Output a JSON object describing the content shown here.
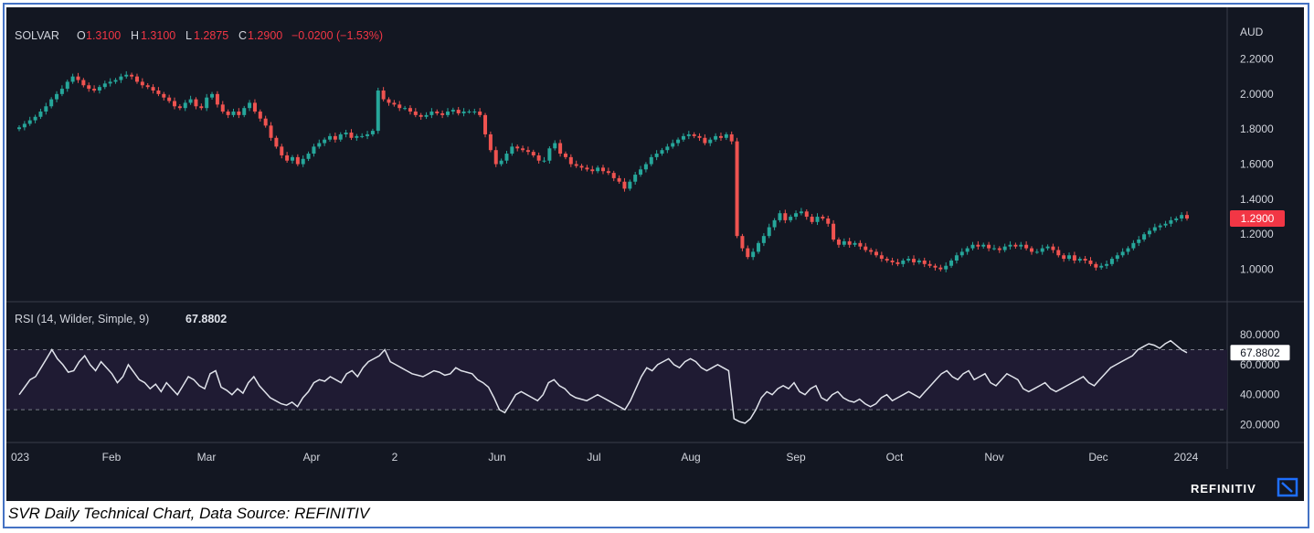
{
  "chart_data": {
    "type": "candlestick",
    "symbol": "SOLVAR",
    "ohlc_header": {
      "o_label": "O",
      "o_value": "1.3100",
      "h_label": "H",
      "h_value": "1.3100",
      "l_label": "L",
      "l_value": "1.2875",
      "c_label": "C",
      "c_value": "1.2900",
      "change": "−0.0200 (−1.53%)"
    },
    "currency": "AUD",
    "last_price_label": "1.2900",
    "price_axis": {
      "ylim": [
        0.93,
        2.26
      ],
      "ticks": [
        "2.2000",
        "2.0000",
        "1.8000",
        "1.6000",
        "1.4000",
        "1.2000",
        "1.0000"
      ],
      "tick_values": [
        2.2,
        2.0,
        1.8,
        1.6,
        1.4,
        1.2,
        1.0
      ]
    },
    "x_ticks": [
      "023",
      "Feb",
      "Mar",
      "Apr",
      "2",
      "Jun",
      "Jul",
      "Aug",
      "Sep",
      "Oct",
      "Nov",
      "Dec",
      "2024"
    ],
    "price_series": [
      1.81,
      1.83,
      1.85,
      1.87,
      1.9,
      1.93,
      1.97,
      2.0,
      2.03,
      2.07,
      2.1,
      2.08,
      2.05,
      2.03,
      2.02,
      2.04,
      2.06,
      2.07,
      2.08,
      2.1,
      2.11,
      2.1,
      2.07,
      2.05,
      2.04,
      2.02,
      2.0,
      1.98,
      1.96,
      1.93,
      1.92,
      1.95,
      1.97,
      1.93,
      1.92,
      1.98,
      2.0,
      1.94,
      1.9,
      1.88,
      1.9,
      1.88,
      1.92,
      1.95,
      1.9,
      1.86,
      1.82,
      1.75,
      1.7,
      1.65,
      1.62,
      1.64,
      1.6,
      1.63,
      1.66,
      1.7,
      1.72,
      1.74,
      1.76,
      1.74,
      1.77,
      1.78,
      1.75,
      1.76,
      1.76,
      1.77,
      1.79,
      2.02,
      1.97,
      1.95,
      1.94,
      1.92,
      1.92,
      1.9,
      1.88,
      1.87,
      1.88,
      1.9,
      1.89,
      1.88,
      1.9,
      1.91,
      1.89,
      1.9,
      1.9,
      1.9,
      1.88,
      1.77,
      1.68,
      1.6,
      1.62,
      1.66,
      1.7,
      1.69,
      1.68,
      1.67,
      1.65,
      1.62,
      1.62,
      1.69,
      1.72,
      1.66,
      1.64,
      1.6,
      1.59,
      1.58,
      1.57,
      1.56,
      1.58,
      1.56,
      1.55,
      1.52,
      1.5,
      1.46,
      1.5,
      1.54,
      1.57,
      1.6,
      1.64,
      1.66,
      1.68,
      1.7,
      1.72,
      1.74,
      1.76,
      1.77,
      1.76,
      1.75,
      1.72,
      1.74,
      1.76,
      1.75,
      1.77,
      1.73,
      1.19,
      1.12,
      1.07,
      1.1,
      1.15,
      1.19,
      1.24,
      1.28,
      1.32,
      1.28,
      1.3,
      1.32,
      1.33,
      1.3,
      1.27,
      1.3,
      1.29,
      1.26,
      1.17,
      1.14,
      1.16,
      1.14,
      1.15,
      1.13,
      1.11,
      1.1,
      1.08,
      1.06,
      1.05,
      1.04,
      1.03,
      1.05,
      1.06,
      1.04,
      1.05,
      1.03,
      1.02,
      1.01,
      1.0,
      1.02,
      1.05,
      1.08,
      1.1,
      1.12,
      1.14,
      1.13,
      1.14,
      1.12,
      1.12,
      1.11,
      1.13,
      1.14,
      1.13,
      1.14,
      1.12,
      1.1,
      1.1,
      1.12,
      1.13,
      1.11,
      1.08,
      1.06,
      1.08,
      1.05,
      1.06,
      1.05,
      1.03,
      1.01,
      1.02,
      1.03,
      1.06,
      1.08,
      1.1,
      1.12,
      1.15,
      1.17,
      1.2,
      1.22,
      1.24,
      1.25,
      1.26,
      1.28,
      1.29,
      1.31,
      1.29
    ],
    "rsi_label": "RSI (14, Wilder, Simple, 9)",
    "rsi_value": "67.8802",
    "rsi_axis": {
      "ylim": [
        13,
        88
      ],
      "ticks": [
        "80.0000",
        "60.0000",
        "40.0000",
        "20.0000"
      ],
      "tick_values": [
        80,
        60,
        40,
        20
      ],
      "band": [
        30,
        70
      ]
    },
    "rsi_series": [
      40,
      45,
      50,
      52,
      58,
      64,
      70,
      64,
      60,
      55,
      56,
      62,
      66,
      60,
      56,
      62,
      58,
      54,
      48,
      52,
      60,
      55,
      50,
      48,
      44,
      47,
      42,
      48,
      44,
      40,
      46,
      52,
      50,
      46,
      44,
      54,
      56,
      45,
      43,
      40,
      44,
      41,
      48,
      52,
      46,
      42,
      38,
      36,
      34,
      33,
      35,
      32,
      38,
      42,
      48,
      50,
      49,
      52,
      50,
      48,
      54,
      56,
      52,
      58,
      62,
      64,
      66,
      70,
      62,
      60,
      58,
      56,
      54,
      53,
      52,
      54,
      56,
      55,
      53,
      54,
      58,
      56,
      55,
      54,
      50,
      48,
      45,
      38,
      30,
      28,
      34,
      40,
      42,
      40,
      38,
      36,
      40,
      48,
      50,
      46,
      44,
      40,
      38,
      37,
      36,
      38,
      40,
      38,
      36,
      34,
      32,
      30,
      36,
      44,
      52,
      58,
      56,
      60,
      62,
      64,
      60,
      58,
      62,
      64,
      62,
      58,
      56,
      58,
      60,
      58,
      56,
      24,
      22,
      21,
      24,
      30,
      38,
      42,
      40,
      44,
      46,
      44,
      48,
      42,
      40,
      44,
      46,
      38,
      36,
      40,
      42,
      38,
      36,
      35,
      37,
      34,
      32,
      34,
      38,
      40,
      36,
      38,
      40,
      42,
      40,
      38,
      42,
      46,
      50,
      54,
      56,
      52,
      50,
      54,
      56,
      50,
      52,
      54,
      48,
      46,
      50,
      54,
      52,
      50,
      44,
      42,
      44,
      46,
      48,
      44,
      42,
      44,
      46,
      48,
      50,
      52,
      48,
      46,
      50,
      54,
      58,
      60,
      62,
      64,
      66,
      70,
      72,
      74,
      73,
      71,
      74,
      76,
      73,
      70,
      68
    ]
  },
  "brand": {
    "name": "REFINITIV"
  },
  "caption": "SVR Daily Technical Chart, Data Source: REFINITIV",
  "colors": {
    "up": "#26a69a",
    "down": "#ef5350",
    "bg": "#131722",
    "text": "#d1d4dc",
    "rsi_line": "#e0e3eb"
  }
}
